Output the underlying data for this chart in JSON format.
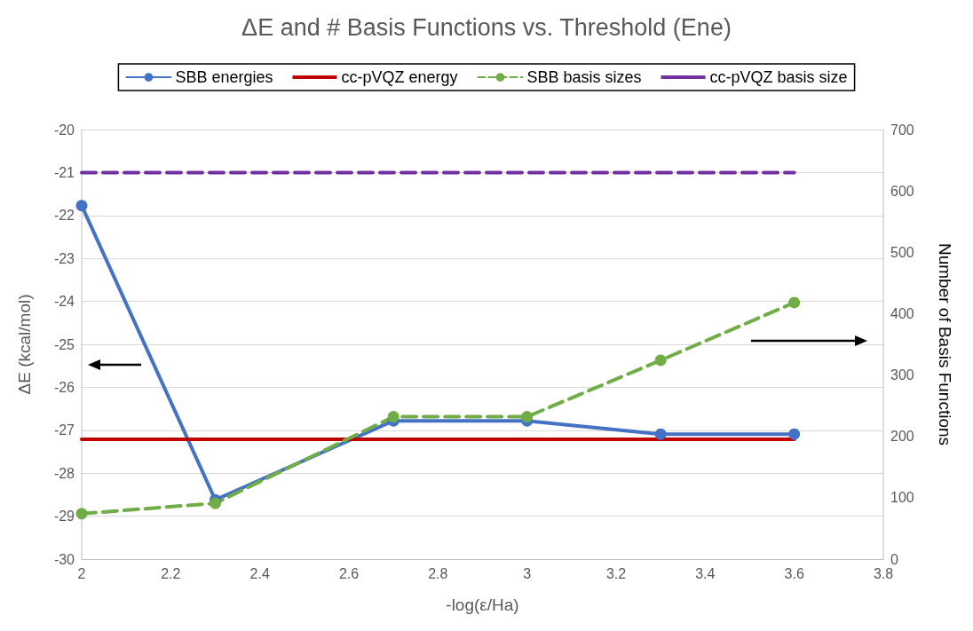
{
  "chart_data": {
    "type": "line",
    "title": "ΔE and # Basis Functions vs. Threshold (Ene)",
    "xlabel": "-log(ε/Ha)",
    "ylabel": "ΔE (kcal/mol)",
    "y2label": "Number of Basis Functions",
    "x": [
      2,
      2.3,
      2.7,
      3,
      3.3,
      3.6
    ],
    "series": [
      {
        "name": "SBB energies",
        "color": "#4472c4",
        "values": [
          -21.77,
          -28.62,
          -26.78,
          -26.78,
          -27.09,
          -27.09
        ],
        "marker": "circle",
        "line_style": "solid"
      },
      {
        "name": "cc-pVQZ energy",
        "color": "#c00000",
        "values": [
          -27.21,
          -27.21,
          -27.21,
          -27.21,
          -27.21,
          -27.21
        ],
        "marker": "none",
        "line_style": "solid"
      },
      {
        "name": "SBB basis sizes",
        "color": "#70ad47",
        "values": [
          74,
          91,
          232,
          232,
          324,
          418
        ],
        "marker": "circle",
        "line_style": "dashed",
        "axis": "y2"
      },
      {
        "name": "cc-pVQZ basis size",
        "color": "#7030a0",
        "values": [
          630,
          630,
          630,
          630,
          630,
          630
        ],
        "marker": "none",
        "line_style": "dashed",
        "axis": "y2"
      }
    ],
    "xlim": [
      2,
      3.8
    ],
    "xticks": [
      2,
      2.2,
      2.4,
      2.6,
      2.8,
      3,
      3.2,
      3.4,
      3.6,
      3.8
    ],
    "ylim": [
      -30,
      -20
    ],
    "yticks": [
      -30,
      -29,
      -28,
      -27,
      -26,
      -25,
      -24,
      -23,
      -22,
      -21,
      -20
    ],
    "y2lim": [
      0,
      700
    ],
    "y2ticks": [
      0,
      100,
      200,
      300,
      400,
      500,
      600,
      700
    ],
    "grid": "y",
    "legend": "top"
  }
}
